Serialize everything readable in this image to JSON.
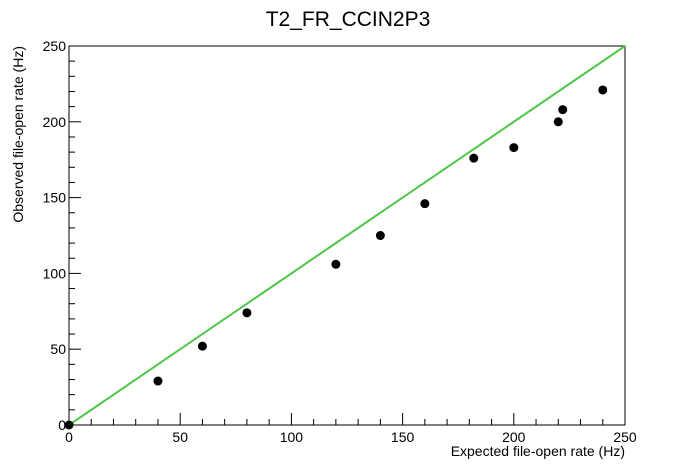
{
  "chart_data": {
    "type": "scatter",
    "title": "T2_FR_CCIN2P3",
    "xlabel": "Expected file-open rate (Hz)",
    "ylabel": "Observed file-open rate (Hz)",
    "xlim": [
      0,
      250
    ],
    "ylim": [
      0,
      250
    ],
    "xticks": [
      "0",
      "50",
      "100",
      "150",
      "200",
      "250"
    ],
    "yticks": [
      "0",
      "50",
      "100",
      "150",
      "200",
      "250"
    ],
    "grid": false,
    "legend": "none",
    "series": [
      {
        "points": [
          [
            0,
            0
          ],
          [
            40,
            29
          ],
          [
            60,
            52
          ],
          [
            80,
            74
          ],
          [
            120,
            106
          ],
          [
            140,
            125
          ],
          [
            160,
            146
          ],
          [
            182,
            176
          ],
          [
            200,
            183
          ],
          [
            220,
            200
          ],
          [
            222,
            208
          ],
          [
            240,
            221
          ]
        ],
        "color": "#000000"
      }
    ],
    "reference_line": {
      "x": [
        0,
        250
      ],
      "y": [
        0,
        250
      ],
      "color": "#4fc64a"
    }
  }
}
